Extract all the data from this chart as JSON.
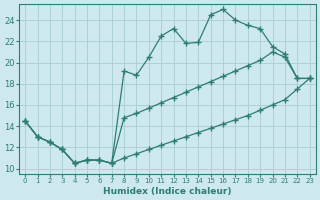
{
  "xlabel": "Humidex (Indice chaleur)",
  "bg_color": "#cde8ee",
  "line_color": "#2e7d72",
  "grid_color": "#a8cdd4",
  "xlim": [
    -0.5,
    23.5
  ],
  "ylim": [
    9.5,
    25.5
  ],
  "xticks": [
    0,
    1,
    2,
    3,
    4,
    5,
    6,
    7,
    8,
    9,
    10,
    11,
    12,
    13,
    14,
    15,
    16,
    17,
    18,
    19,
    20,
    21,
    22,
    23
  ],
  "yticks": [
    10,
    12,
    14,
    16,
    18,
    20,
    22,
    24
  ],
  "line1_x": [
    0,
    1,
    2,
    3,
    4,
    5,
    6,
    7,
    8,
    9,
    10,
    11,
    12,
    13,
    14,
    15,
    16,
    17,
    18,
    19,
    20,
    21,
    22,
    23
  ],
  "line1_y": [
    14.5,
    13.0,
    12.5,
    11.8,
    10.5,
    10.8,
    10.8,
    10.5,
    19.2,
    18.8,
    20.5,
    22.5,
    23.2,
    21.8,
    21.9,
    24.5,
    25.0,
    24.0,
    23.5,
    23.2,
    21.5,
    20.8,
    18.5,
    18.5
  ],
  "line2_x": [
    0,
    1,
    2,
    3,
    4,
    5,
    6,
    7,
    8,
    9,
    10,
    11,
    12,
    13,
    14,
    15,
    16,
    17,
    18,
    19,
    20,
    21,
    22,
    23
  ],
  "line2_y": [
    14.5,
    13.0,
    12.5,
    11.8,
    10.5,
    10.8,
    10.8,
    10.5,
    14.8,
    15.2,
    15.7,
    16.2,
    16.7,
    17.2,
    17.7,
    18.2,
    18.7,
    19.2,
    19.7,
    20.2,
    21.0,
    20.5,
    18.5,
    18.5
  ],
  "line3_x": [
    0,
    1,
    2,
    3,
    4,
    5,
    6,
    7,
    8,
    9,
    10,
    11,
    12,
    13,
    14,
    15,
    16,
    17,
    18,
    19,
    20,
    21,
    22,
    23
  ],
  "line3_y": [
    14.5,
    13.0,
    12.5,
    11.8,
    10.5,
    10.8,
    10.8,
    10.5,
    11.0,
    11.4,
    11.8,
    12.2,
    12.6,
    13.0,
    13.4,
    13.8,
    14.2,
    14.6,
    15.0,
    15.5,
    16.0,
    16.5,
    17.5,
    18.5
  ]
}
